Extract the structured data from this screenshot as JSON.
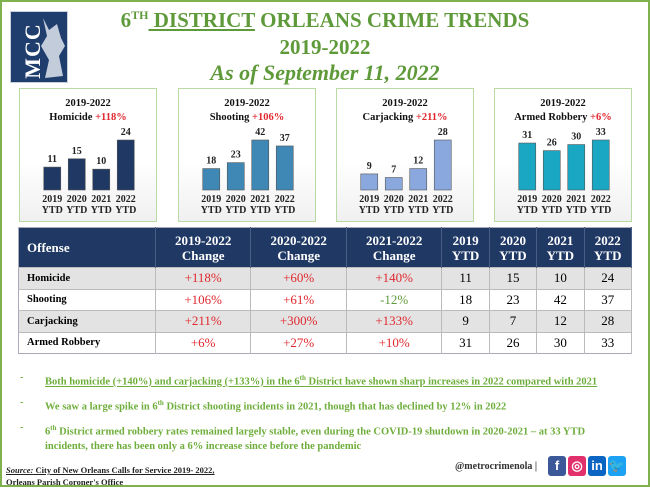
{
  "header": {
    "logo_text": "MCC",
    "title_sup_prefix": "6",
    "title_sup": "TH",
    "title_underlined": " DISTRICT",
    "title_rest": " ORLEANS CRIME TRENDS",
    "years": "2019-2022",
    "as_of": "As of September 11, 2022"
  },
  "chart_data": [
    {
      "type": "bar",
      "title": "2019-2022",
      "label": "Homicide",
      "change": "+118%",
      "categories": [
        "2019",
        "2020",
        "2021",
        "2022"
      ],
      "cat_sub": "YTD",
      "values": [
        11,
        15,
        10,
        24
      ],
      "color": "#1f3864"
    },
    {
      "type": "bar",
      "title": "2019-2022",
      "label": "Shooting",
      "change": "+106%",
      "categories": [
        "2019",
        "2020",
        "2021",
        "2022"
      ],
      "cat_sub": "YTD",
      "values": [
        18,
        23,
        42,
        37
      ],
      "color": "#3f88b5"
    },
    {
      "type": "bar",
      "title": "2019-2022",
      "label": "Carjacking",
      "change": "+211%",
      "categories": [
        "2019",
        "2020",
        "2021",
        "2022"
      ],
      "cat_sub": "YTD",
      "values": [
        9,
        7,
        12,
        28
      ],
      "color": "#8aa8de"
    },
    {
      "type": "bar",
      "title": "2019-2022",
      "label": "Armed Robbery",
      "change": "+6%",
      "categories": [
        "2019",
        "2020",
        "2021",
        "2022"
      ],
      "cat_sub": "YTD",
      "values": [
        31,
        26,
        30,
        33
      ],
      "color": "#1aa7c3"
    }
  ],
  "table": {
    "headers": [
      [
        "Offense",
        ""
      ],
      [
        "2019-2022",
        "Change"
      ],
      [
        "2020-2022",
        "Change"
      ],
      [
        "2021-2022",
        "Change"
      ],
      [
        "2019",
        "YTD"
      ],
      [
        "2020",
        "YTD"
      ],
      [
        "2021",
        "YTD"
      ],
      [
        "2022",
        "YTD"
      ]
    ],
    "rows": [
      [
        "Homicide",
        "+118%",
        "+60%",
        "+140%",
        "11",
        "15",
        "10",
        "24"
      ],
      [
        "Shooting",
        "+106%",
        "+61%",
        "-12%",
        "18",
        "23",
        "42",
        "37"
      ],
      [
        "Carjacking",
        "+211%",
        "+300%",
        "+133%",
        "9",
        "7",
        "12",
        "28"
      ],
      [
        "Armed Robbery",
        "+6%",
        "+27%",
        "+10%",
        "31",
        "26",
        "30",
        "33"
      ]
    ]
  },
  "bullets": [
    {
      "dash": "-",
      "pre": "Both homicide (+140%) and carjacking (+133%) in the 6",
      "sup": "th",
      "post": " District have shown sharp increases in 2022 compared with 2021"
    },
    {
      "dash": "-",
      "pre": "We saw a large spike in 6",
      "sup": "th",
      "post": " District shooting incidents in 2021, though that has declined by 12% in 2022"
    },
    {
      "dash": "-",
      "pre": "6",
      "sup": "th",
      "post": " District armed robbery rates remained largely stable, even during the COVID-19 shutdown in 2020-2021 – at 33 YTD incidents, there has been only a 6% increase since before the pandemic"
    }
  ],
  "footer": {
    "source_label": "Source:",
    "source_text": " City of New Orleans Calls for Service 2019- 2022,",
    "source_line2": "Orleans Parish Coroner's Office",
    "handle": "@metrocrimenola  |",
    "social": [
      {
        "icon": "facebook-icon",
        "glyph": "f",
        "color": "#3b5998"
      },
      {
        "icon": "instagram-icon",
        "glyph": "◎",
        "color": "#e1306c"
      },
      {
        "icon": "linkedin-icon",
        "glyph": "in",
        "color": "#0a66c2"
      },
      {
        "icon": "twitter-icon",
        "glyph": "🐦",
        "color": "#1da1f2"
      }
    ]
  }
}
